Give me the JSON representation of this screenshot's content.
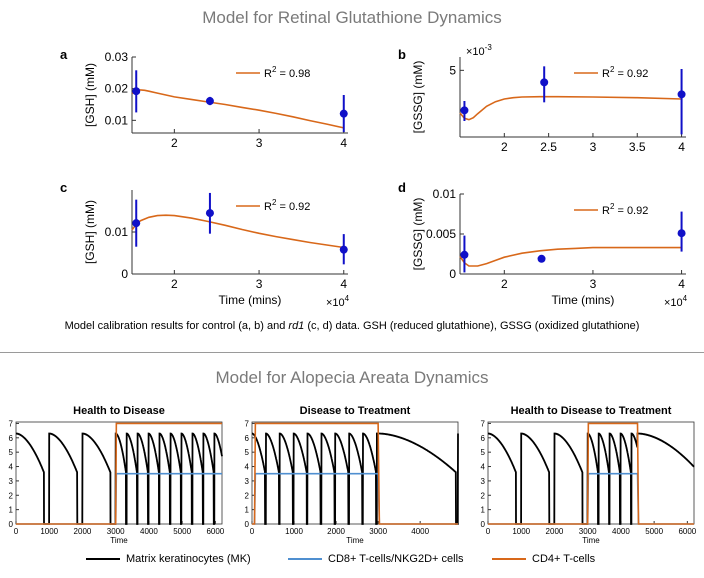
{
  "titles": {
    "top": "Model for Retinal Glutathione Dynamics",
    "bottom": "Model for Alopecia Areata Dynamics"
  },
  "caption": {
    "before": "Model calibration results for control (a, b) and ",
    "italic": "rd1",
    "after": " (c, d) data. GSH (reduced glutathione), GSSG (oxidized glutathione)"
  },
  "colors": {
    "model": "#d8681a",
    "data": "#1010c8",
    "mk": "#000000",
    "cd8": "#4f8fd0",
    "cd4": "#d8681a",
    "axis": "#333333"
  },
  "legend": [
    {
      "label": "Matrix keratinocytes (MK)",
      "color": "#000000"
    },
    {
      "label": "CD8+ T-cells/NKG2D+ cells",
      "color": "#4f8fd0"
    },
    {
      "label": "CD4+ T-cells",
      "color": "#d8681a"
    }
  ],
  "chart_data": [
    {
      "id": "a",
      "type": "line",
      "panel_label": "a",
      "ylabel": "[GSH] (mM)",
      "xlabel": "",
      "multiplier": "",
      "r2": "R",
      "r2_value": "= 0.98",
      "xlim": [
        1.5,
        4.05
      ],
      "ylim": [
        0.006,
        0.03
      ],
      "xticks": [
        {
          "v": 2,
          "t": "2"
        },
        {
          "v": 3,
          "t": "3"
        },
        {
          "v": 4,
          "t": "4"
        }
      ],
      "yticks": [
        {
          "v": 0.01,
          "t": "0.01"
        },
        {
          "v": 0.02,
          "t": "0.02"
        },
        {
          "v": 0.03,
          "t": "0.03"
        }
      ],
      "model": {
        "x": [
          1.5,
          1.55,
          1.6,
          1.65,
          1.7,
          1.8,
          1.9,
          2.0,
          2.2,
          2.4,
          2.6,
          2.8,
          3.0,
          3.2,
          3.4,
          3.6,
          3.8,
          4.0
        ],
        "y": [
          0.0185,
          0.0192,
          0.0196,
          0.0195,
          0.0192,
          0.0186,
          0.018,
          0.0174,
          0.0166,
          0.0158,
          0.015,
          0.0141,
          0.0132,
          0.0122,
          0.0111,
          0.0099,
          0.0088,
          0.0076
        ]
      },
      "points": [
        {
          "x": 1.55,
          "y": 0.0192,
          "lo": 0.0125,
          "hi": 0.0258
        },
        {
          "x": 2.42,
          "y": 0.0161,
          "lo": 0.0148,
          "hi": 0.0174
        },
        {
          "x": 4.0,
          "y": 0.0121,
          "lo": 0.0063,
          "hi": 0.018
        }
      ]
    },
    {
      "id": "b",
      "type": "line",
      "panel_label": "b",
      "ylabel": "[GSSG] (mM)",
      "xlabel": "",
      "multiplier": "×10",
      "mult_exp": "-3",
      "r2": "R",
      "r2_value": "= 0.92",
      "xlim": [
        1.5,
        4.05
      ],
      "ylim": [
        0,
        6
      ],
      "xticks": [
        {
          "v": 2,
          "t": "2"
        },
        {
          "v": 2.5,
          "t": "2.5"
        },
        {
          "v": 3,
          "t": "3"
        },
        {
          "v": 3.5,
          "t": "3.5"
        },
        {
          "v": 4,
          "t": "4"
        }
      ],
      "yticks": [
        {
          "v": 5,
          "t": "5"
        }
      ],
      "model": {
        "x": [
          1.5,
          1.55,
          1.6,
          1.65,
          1.7,
          1.8,
          1.9,
          2.0,
          2.1,
          2.2,
          2.4,
          2.6,
          3.0,
          3.5,
          4.0
        ],
        "y": [
          1.8,
          1.4,
          1.3,
          1.45,
          1.75,
          2.3,
          2.65,
          2.85,
          2.95,
          3.0,
          3.02,
          3.02,
          3.0,
          2.95,
          2.85
        ]
      },
      "points": [
        {
          "x": 1.55,
          "y": 2.0,
          "lo": 1.2,
          "hi": 2.7
        },
        {
          "x": 2.45,
          "y": 4.1,
          "lo": 2.6,
          "hi": 5.3
        },
        {
          "x": 4.0,
          "y": 3.2,
          "lo": 0.2,
          "hi": 5.1
        }
      ]
    },
    {
      "id": "c",
      "type": "line",
      "panel_label": "c",
      "ylabel": "[GSH] (mM)",
      "xlabel": "Time (mins)",
      "multiplier": "×10",
      "mult_exp": "4",
      "r2": "R",
      "r2_value": "= 0.92",
      "xlim": [
        1.5,
        4.05
      ],
      "ylim": [
        0,
        0.02
      ],
      "xticks": [
        {
          "v": 2,
          "t": "2"
        },
        {
          "v": 3,
          "t": "3"
        },
        {
          "v": 4,
          "t": "4"
        }
      ],
      "yticks": [
        {
          "v": 0,
          "t": "0"
        },
        {
          "v": 0.01,
          "t": "0.01"
        }
      ],
      "model": {
        "x": [
          1.5,
          1.55,
          1.6,
          1.7,
          1.8,
          1.9,
          2.0,
          2.2,
          2.4,
          2.6,
          2.8,
          3.0,
          3.2,
          3.4,
          3.6,
          3.8,
          4.0
        ],
        "y": [
          0.0105,
          0.0118,
          0.0127,
          0.0135,
          0.0139,
          0.014,
          0.0139,
          0.0133,
          0.0125,
          0.0116,
          0.0106,
          0.0097,
          0.0089,
          0.0082,
          0.0075,
          0.0069,
          0.0063
        ]
      },
      "points": [
        {
          "x": 1.55,
          "y": 0.0121,
          "lo": 0.0065,
          "hi": 0.0177
        },
        {
          "x": 2.42,
          "y": 0.0145,
          "lo": 0.0096,
          "hi": 0.0193
        },
        {
          "x": 4.0,
          "y": 0.0058,
          "lo": 0.0023,
          "hi": 0.0095
        }
      ]
    },
    {
      "id": "d",
      "type": "line",
      "panel_label": "d",
      "ylabel": "[GSSG] (mM)",
      "xlabel": "Time (mins)",
      "multiplier": "×10",
      "mult_exp": "4",
      "r2": "R",
      "r2_value": "= 0.92",
      "xlim": [
        1.5,
        4.05
      ],
      "ylim": [
        0,
        0.01
      ],
      "xticks": [
        {
          "v": 2,
          "t": "2"
        },
        {
          "v": 3,
          "t": "3"
        },
        {
          "v": 4,
          "t": "4"
        }
      ],
      "yticks": [
        {
          "v": 0,
          "t": "0"
        },
        {
          "v": 0.005,
          "t": "0.005"
        },
        {
          "v": 0.01,
          "t": "0.01"
        }
      ],
      "model": {
        "x": [
          1.5,
          1.55,
          1.6,
          1.7,
          1.8,
          1.9,
          2.0,
          2.2,
          2.4,
          2.6,
          2.8,
          3.0,
          3.4,
          3.8,
          4.0
        ],
        "y": [
          0.0022,
          0.0014,
          0.001,
          0.001,
          0.0013,
          0.0017,
          0.0021,
          0.0026,
          0.0029,
          0.0031,
          0.0032,
          0.0033,
          0.0033,
          0.0033,
          0.0033
        ]
      },
      "points": [
        {
          "x": 1.55,
          "y": 0.0024,
          "lo": 0.0002,
          "hi": 0.0048
        },
        {
          "x": 2.42,
          "y": 0.0019,
          "lo": 0.0019,
          "hi": 0.0019
        },
        {
          "x": 4.0,
          "y": 0.0051,
          "lo": 0.0028,
          "hi": 0.0078
        }
      ]
    },
    {
      "id": "ad1",
      "type": "line",
      "title": "Health to Disease",
      "xlabel": "Time",
      "xlim": [
        0,
        6200
      ],
      "ylim": [
        0,
        7.1
      ],
      "xticks": [
        0,
        1000,
        2000,
        3000,
        4000,
        5000,
        6000
      ],
      "yticks": [
        0,
        1,
        2,
        3,
        4,
        5,
        6,
        7
      ],
      "mk_phases": [
        {
          "start": 0,
          "end": 3000,
          "period": 1000,
          "drop": 840
        },
        {
          "start": 3000,
          "end": 6200,
          "period": 330,
          "drop": 310
        }
      ],
      "cd8": {
        "on": 3000,
        "off": null,
        "level": 3.5
      },
      "cd4": {
        "on": 3000,
        "off": null,
        "level": 7.0
      }
    },
    {
      "id": "ad2",
      "type": "line",
      "title": "Disease to Treatment",
      "xlabel": "Time",
      "xlim": [
        0,
        4900
      ],
      "ylim": [
        0,
        7.1
      ],
      "xticks": [
        0,
        1000,
        2000,
        3000,
        4000
      ],
      "yticks": [
        0,
        1,
        2,
        3,
        4,
        5,
        6,
        7
      ],
      "mk_phases": [
        {
          "start": 0,
          "end": 3000,
          "period": 330,
          "drop": 310
        },
        {
          "start": 3000,
          "end": 4900,
          "period": 1900,
          "drop": 1850
        }
      ],
      "cd8": {
        "on": 60,
        "off": 3000,
        "level": 3.5
      },
      "cd4": {
        "on": 60,
        "off": 3000,
        "level": 7.0
      }
    },
    {
      "id": "ad3",
      "type": "line",
      "title": "Health to Disease to Treatment",
      "xlabel": "Time",
      "xlim": [
        0,
        6200
      ],
      "ylim": [
        0,
        7.1
      ],
      "xticks": [
        0,
        1000,
        2000,
        3000,
        4000,
        5000,
        6000
      ],
      "yticks": [
        0,
        1,
        2,
        3,
        4,
        5,
        6,
        7
      ],
      "mk_phases": [
        {
          "start": 0,
          "end": 3000,
          "period": 1000,
          "drop": 840
        },
        {
          "start": 3000,
          "end": 4500,
          "period": 330,
          "drop": 310
        },
        {
          "start": 4500,
          "end": 6200,
          "period": 1900,
          "drop": 1850
        }
      ],
      "cd8": {
        "on": 3000,
        "off": 4500,
        "level": 3.5
      },
      "cd4": {
        "on": 3000,
        "off": 4500,
        "level": 7.0
      }
    }
  ]
}
